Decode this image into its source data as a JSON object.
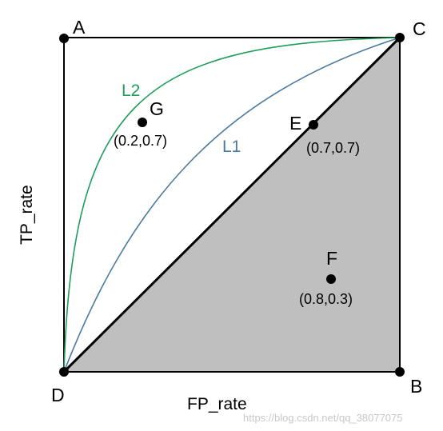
{
  "axes": {
    "x_label": "FP_rate",
    "y_label": "TP_rate"
  },
  "corners": [
    {
      "name": "A",
      "fpr": 0,
      "tpr": 1
    },
    {
      "name": "B",
      "fpr": 1,
      "tpr": 0
    },
    {
      "name": "C",
      "fpr": 1,
      "tpr": 1
    },
    {
      "name": "D",
      "fpr": 0,
      "tpr": 0
    }
  ],
  "points": [
    {
      "name": "E",
      "coord_label": "(0.7,0.7)",
      "fpr": 0.7,
      "tpr": 0.7
    },
    {
      "name": "F",
      "coord_label": "(0.8,0.3)",
      "fpr": 0.8,
      "tpr": 0.3
    },
    {
      "name": "G",
      "coord_label": "(0.2,0.7)",
      "fpr": 0.2,
      "tpr": 0.7
    }
  ],
  "curves": [
    {
      "name": "L1",
      "color": "#4a7aa0"
    },
    {
      "name": "L2",
      "color": "#1e9e5a"
    }
  ],
  "watermark": "https://blog.csdn.net/qq_38077075",
  "colors": {
    "shade": "#bfbfbf",
    "line": "#000000"
  }
}
